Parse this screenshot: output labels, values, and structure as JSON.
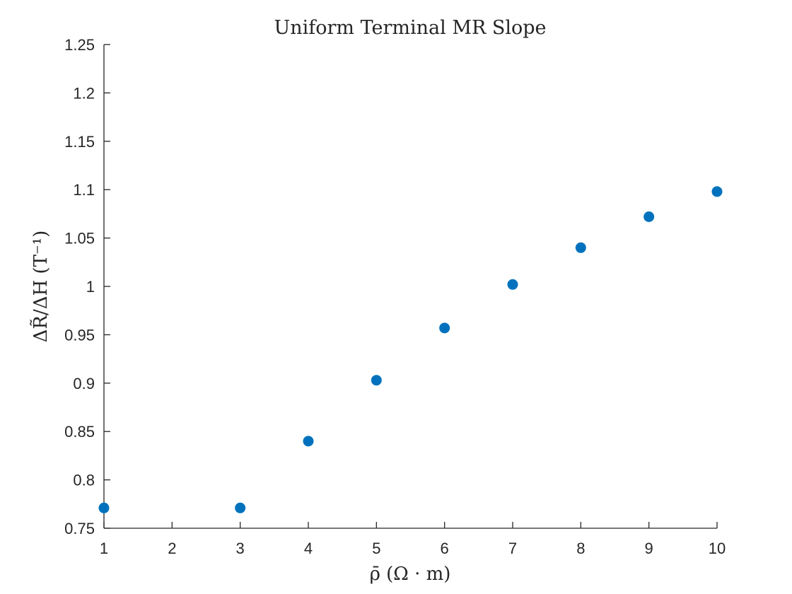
{
  "chart_data": {
    "type": "scatter",
    "title": "Uniform Terminal MR Slope",
    "xlabel": "ρ̄ (Ω · m)",
    "ylabel": "ΔR̃/ΔH (T⁻¹)",
    "xlim": [
      1,
      10
    ],
    "ylim": [
      0.75,
      1.25
    ],
    "x_ticks": [
      "1",
      "2",
      "3",
      "4",
      "5",
      "6",
      "7",
      "8",
      "9",
      "10"
    ],
    "y_ticks": [
      "0.75",
      "0.8",
      "0.85",
      "0.9",
      "0.95",
      "1",
      "1.05",
      "1.1",
      "1.15",
      "1.2",
      "1.25"
    ],
    "grid": false,
    "marker_color": "#0072BD",
    "points": [
      {
        "x": 1,
        "y": 0.771
      },
      {
        "x": 3,
        "y": 0.771
      },
      {
        "x": 4,
        "y": 0.84
      },
      {
        "x": 5,
        "y": 0.903
      },
      {
        "x": 6,
        "y": 0.957
      },
      {
        "x": 7,
        "y": 1.002
      },
      {
        "x": 8,
        "y": 1.04
      },
      {
        "x": 9,
        "y": 1.072
      },
      {
        "x": 10,
        "y": 1.098
      }
    ]
  }
}
